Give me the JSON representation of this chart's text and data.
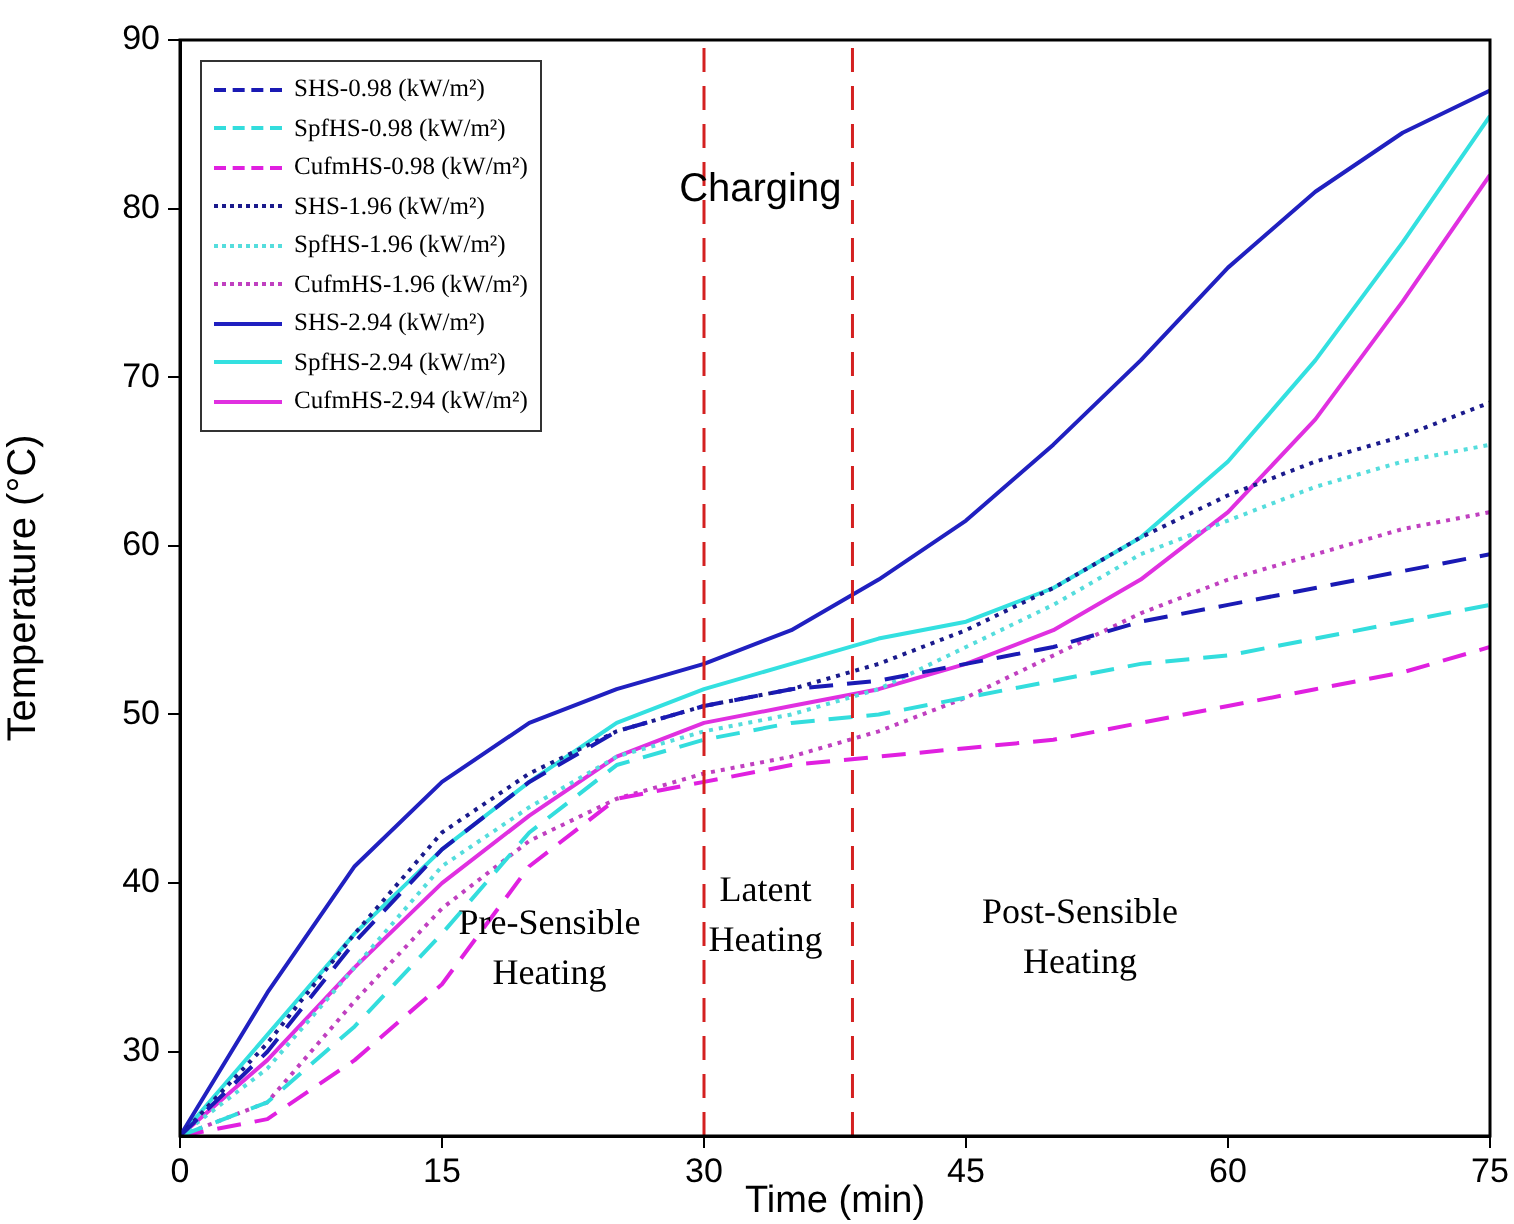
{
  "chart_data": {
    "type": "line",
    "xlabel": "Time (min)",
    "ylabel": "Temperature (°C)",
    "x": [
      0,
      5,
      10,
      15,
      20,
      25,
      30,
      35,
      40,
      45,
      50,
      55,
      60,
      65,
      70,
      75
    ],
    "series": [
      {
        "name": "SHS-0.98 (kW/m²)",
        "color": "#1a1ab4",
        "line_style": "dashed",
        "values": [
          25,
          30,
          36.5,
          42,
          46,
          49,
          50.5,
          51.5,
          52,
          53,
          54,
          55.5,
          56.5,
          57.5,
          58.5,
          59.5
        ]
      },
      {
        "name": "SpfHS-0.98 (kW/m²)",
        "color": "#33dddd",
        "line_style": "dashed",
        "values": [
          25,
          27,
          31.5,
          37,
          43,
          47,
          48.5,
          49.5,
          50,
          51,
          52,
          53,
          53.5,
          54.5,
          55.5,
          56.5
        ]
      },
      {
        "name": "CufmHS-0.98 (kW/m²)",
        "color": "#e020e0",
        "line_style": "dashed",
        "values": [
          25,
          26,
          29.5,
          34,
          41,
          45,
          46,
          47,
          47.5,
          48,
          48.5,
          49.5,
          50.5,
          51.5,
          52.5,
          54
        ]
      },
      {
        "name": "SHS-1.96 (kW/m²)",
        "color": "#1a1a8c",
        "line_style": "dotted",
        "values": [
          25,
          30.5,
          37,
          43,
          46.5,
          49,
          50.5,
          51.5,
          53,
          55,
          57.5,
          60.5,
          63,
          65,
          66.5,
          68.5
        ]
      },
      {
        "name": "SpfHS-1.96 (kW/m²)",
        "color": "#55dddd",
        "line_style": "dotted",
        "values": [
          25,
          29,
          35,
          41,
          44.5,
          47.5,
          49,
          50,
          51.5,
          54,
          56.5,
          59.5,
          61.5,
          63.5,
          65,
          66
        ]
      },
      {
        "name": "CufmHS-1.96 (kW/m²)",
        "color": "#c040c0",
        "line_style": "dotted",
        "values": [
          25,
          27,
          33,
          38.5,
          42.5,
          45,
          46.5,
          47.5,
          49,
          51,
          53.5,
          56,
          58,
          59.5,
          61,
          62
        ]
      },
      {
        "name": "SHS-2.94 (kW/m²)",
        "color": "#2020c0",
        "line_style": "solid",
        "values": [
          25,
          33.5,
          41,
          46,
          49.5,
          51.5,
          53,
          55,
          58,
          61.5,
          66,
          71,
          76.5,
          81,
          84.5,
          87
        ]
      },
      {
        "name": "SpfHS-2.94 (kW/m²)",
        "color": "#33e0e0",
        "line_style": "solid",
        "values": [
          25,
          31,
          37,
          42,
          46,
          49.5,
          51.5,
          53,
          54.5,
          55.5,
          57.5,
          60.5,
          65,
          71,
          78,
          85.5
        ]
      },
      {
        "name": "CufmHS-2.94 (kW/m²)",
        "color": "#e030e0",
        "line_style": "solid",
        "values": [
          25,
          29.5,
          35,
          40,
          44,
          47.5,
          49.5,
          50.5,
          51.5,
          53,
          55,
          58,
          62,
          67.5,
          74.5,
          82
        ]
      }
    ],
    "xlim": [
      0,
      75
    ],
    "xticks": [
      0,
      15,
      30,
      45,
      60,
      75
    ],
    "ylim": [
      25,
      90
    ],
    "yticks": [
      30,
      40,
      50,
      60,
      70,
      80,
      90
    ],
    "ref_lines": [
      {
        "axis": "x",
        "value": 30,
        "color": "#d42020",
        "line_style": "dashed"
      },
      {
        "axis": "x",
        "value": 38.5,
        "color": "#d42020",
        "line_style": "dashed"
      }
    ],
    "annotations": [
      "Charging",
      "Pre-Sensible\nHeating",
      "Latent\nHeating",
      "Post-Sensible\nHeating"
    ],
    "grid": false,
    "legend": "top left",
    "marker": "none"
  }
}
